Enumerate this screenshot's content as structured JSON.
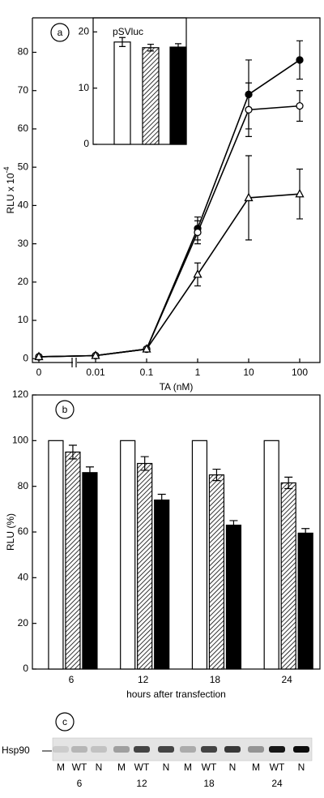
{
  "chart_data": [
    {
      "type": "line",
      "label": "a",
      "categories": [
        "0",
        "0.01",
        "0.1",
        "1",
        "10",
        "100"
      ],
      "xlabel": "TA (nM)",
      "ylabel": "RLU x 10",
      "ylabel_sup": "-4",
      "ylim": [
        -1,
        89
      ],
      "yticks": [
        0,
        10,
        20,
        30,
        40,
        50,
        60,
        70,
        80
      ],
      "axis_break": true,
      "series": [
        {
          "marker": "filled-circle",
          "color": "#000000",
          "values": [
            0.5,
            0.8,
            2.5,
            34,
            69,
            78
          ],
          "errors": [
            0,
            0,
            0,
            3,
            9,
            5
          ]
        },
        {
          "marker": "open-circle",
          "color": "#000000",
          "values": [
            0.5,
            0.8,
            2.5,
            33,
            65,
            66
          ],
          "errors": [
            0,
            0,
            0,
            3,
            7,
            4
          ]
        },
        {
          "marker": "open-triangle",
          "color": "#000000",
          "values": [
            0.5,
            0.8,
            2.5,
            22,
            42,
            43
          ],
          "errors": [
            0,
            0,
            0,
            3,
            11,
            6.5
          ]
        }
      ]
    },
    {
      "type": "bar",
      "title": "pSVluc",
      "ylim": [
        0,
        22.5
      ],
      "yticks": [
        0,
        10,
        20
      ],
      "values": [
        18.2,
        17.2,
        17.3
      ],
      "errors": [
        0.8,
        0.6,
        0.6
      ],
      "fills": [
        "white",
        "hatch",
        "black"
      ]
    },
    {
      "type": "grouped-bar",
      "label": "b",
      "categories": [
        "6",
        "12",
        "18",
        "24"
      ],
      "xlabel": "hours after transfection",
      "ylabel": "RLU (%)",
      "ylim": [
        0,
        120
      ],
      "yticks": [
        0,
        20,
        40,
        60,
        80,
        100,
        120
      ],
      "series": [
        {
          "fill": "white",
          "values": [
            100,
            100,
            100,
            100
          ],
          "errors": [
            0,
            0,
            0,
            0
          ]
        },
        {
          "fill": "hatch",
          "values": [
            95,
            90,
            85,
            81.5
          ],
          "errors": [
            3,
            3,
            2.5,
            2.5
          ]
        },
        {
          "fill": "black",
          "values": [
            86,
            74,
            63,
            59.5
          ],
          "errors": [
            2.5,
            2.5,
            2,
            2
          ]
        }
      ]
    }
  ],
  "blot": {
    "label": "c",
    "row_label": "Hsp90",
    "lanes": [
      "M",
      "WT",
      "N",
      "M",
      "WT",
      "N",
      "M",
      "WT",
      "N",
      "M",
      "WT",
      "N"
    ],
    "groups": [
      "6",
      "12",
      "18",
      "24"
    ]
  }
}
